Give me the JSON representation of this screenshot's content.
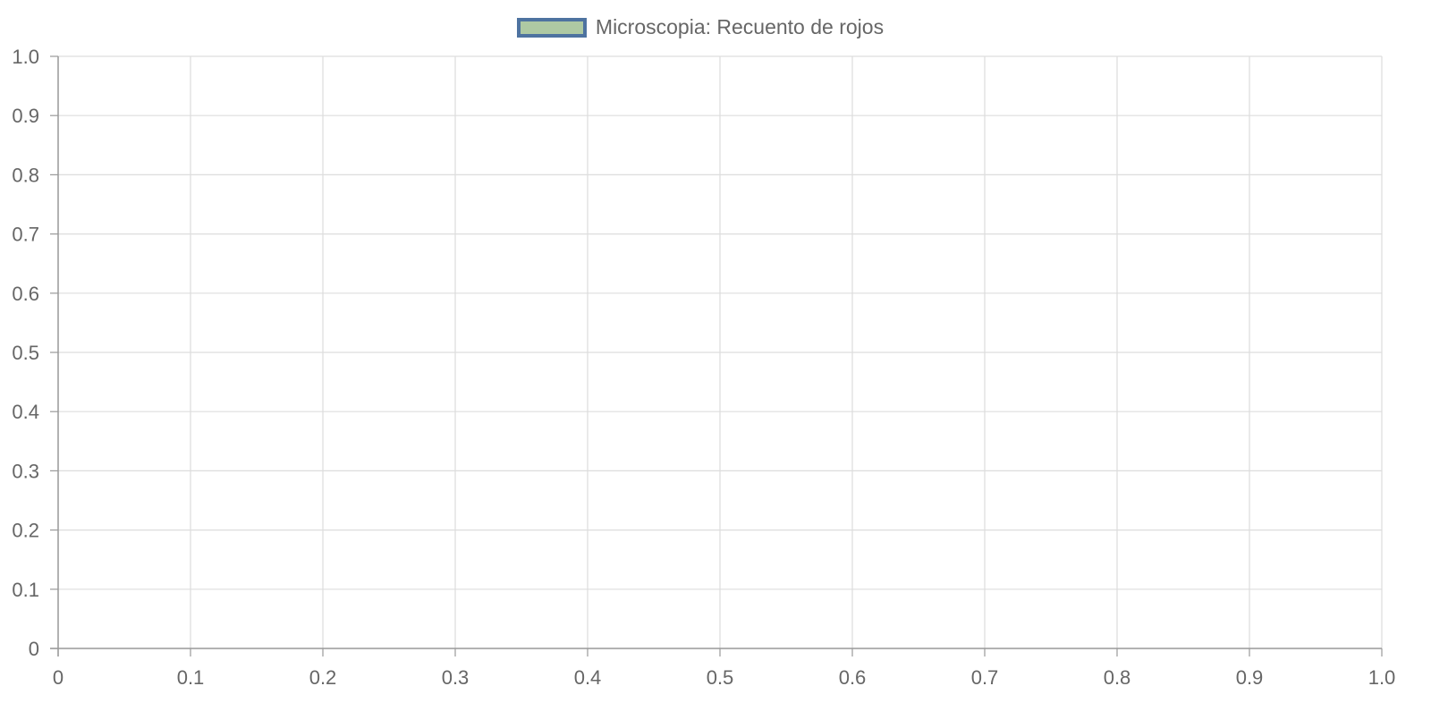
{
  "chart_data": {
    "type": "scatter",
    "title": "",
    "xlabel": "",
    "ylabel": "",
    "xlim": [
      0,
      1
    ],
    "ylim": [
      0,
      1
    ],
    "x_ticks": [
      "0",
      "0.1",
      "0.2",
      "0.3",
      "0.4",
      "0.5",
      "0.6",
      "0.7",
      "0.8",
      "0.9",
      "1.0"
    ],
    "y_ticks": [
      "0",
      "0.1",
      "0.2",
      "0.3",
      "0.4",
      "0.5",
      "0.6",
      "0.7",
      "0.8",
      "0.9",
      "1.0"
    ],
    "grid": true,
    "legend_position": "top-center",
    "series": [
      {
        "name": "Microscopia: Recuento de rojos",
        "fill_color": "#aec9a3",
        "border_color": "#4e73a0",
        "points": []
      }
    ]
  }
}
